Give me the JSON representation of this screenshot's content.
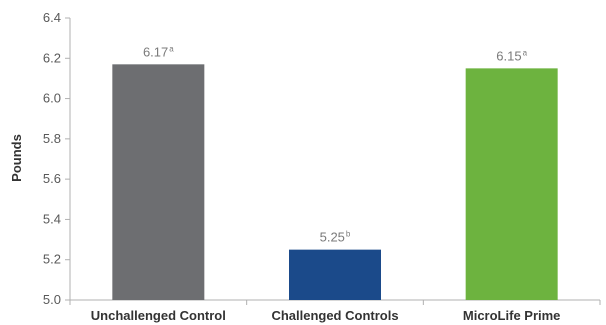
{
  "chart_data": {
    "type": "bar",
    "categories": [
      "Unchallenged Control",
      "Challenged Controls",
      "MicroLife Prime"
    ],
    "values": [
      6.17,
      5.25,
      6.15
    ],
    "value_labels": [
      "6.17",
      "5.25",
      "6.15"
    ],
    "superscripts": [
      "a",
      "b",
      "a"
    ],
    "colors": [
      "#6d6e71",
      "#1b4a8a",
      "#6db33f"
    ],
    "title": "",
    "xlabel": "",
    "ylabel": "Pounds",
    "ylim": [
      5.0,
      6.4
    ],
    "yticks": [
      "5.0",
      "5.2",
      "5.4",
      "5.6",
      "5.8",
      "6.0",
      "6.2",
      "6.4"
    ],
    "grid": false,
    "legend": "none"
  }
}
